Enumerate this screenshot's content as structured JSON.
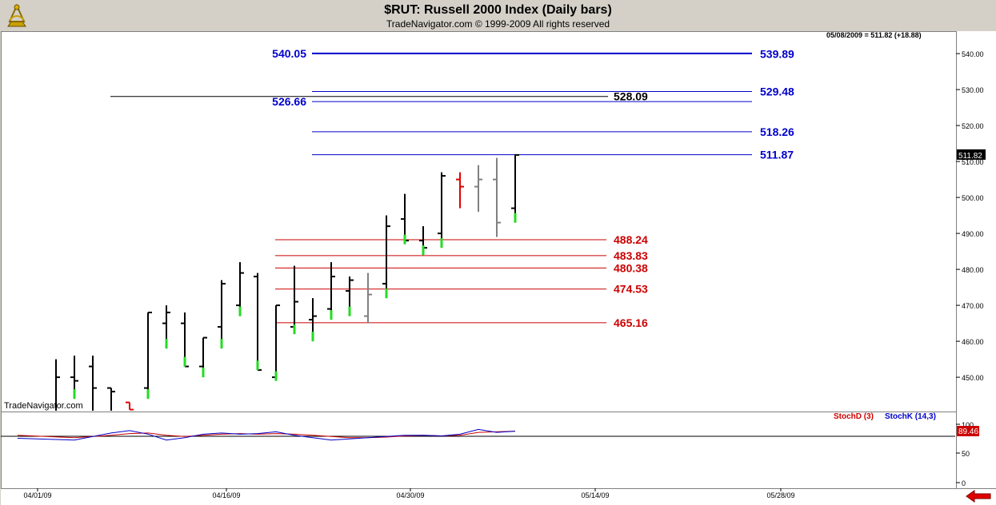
{
  "header": {
    "title": "$RUT:  Russell 2000 Index  (Daily bars)",
    "subtitle": "TradeNavigator.com © 1999-2009 All rights reserved",
    "readout": "05/08/2009 = 511.82 (+18.88)",
    "watermark": "TradeNavigator.com",
    "logo_icon": "sextant-logo-icon",
    "nav_icon": "red-left-arrow-icon"
  },
  "oscillator": {
    "legend_d": "StochD (3)",
    "legend_k": "StochK (14,3)",
    "current_label": "89.46",
    "yticks": [
      "100",
      "50",
      "0"
    ],
    "series_k_color": "#0000cc",
    "series_d_color": "#cc0000"
  },
  "chart_data": {
    "type": "ohlc",
    "ylim": [
      441,
      546
    ],
    "yticks": [
      450,
      460,
      470,
      480,
      490,
      500,
      510,
      520,
      530,
      540
    ],
    "ytick_labels": [
      "450.00",
      "460.00",
      "470.00",
      "480.00",
      "490.00",
      "500.00",
      "510.00",
      "520.00",
      "530.00",
      "540.00"
    ],
    "current_price_label": "511.82",
    "x_dates": [
      "04/01/09",
      "04/16/09",
      "04/30/09",
      "05/14/09",
      "05/28/09"
    ],
    "bars": [
      {
        "date": "04/01/09",
        "o": 440,
        "h": 455,
        "l": 435,
        "c": 450,
        "color": "black"
      },
      {
        "date": "04/02/09",
        "o": 450,
        "h": 456,
        "l": 444,
        "c": 449,
        "color": "black"
      },
      {
        "date": "04/03/09",
        "o": 453,
        "h": 456,
        "l": 440,
        "c": 447,
        "color": "black"
      },
      {
        "date": "04/06/09",
        "o": 447,
        "h": 447,
        "l": 440,
        "c": 446,
        "color": "black"
      },
      {
        "date": "04/07/09",
        "o": 443,
        "h": 443,
        "l": 441,
        "c": 441,
        "color": "red"
      },
      {
        "date": "04/08/09",
        "o": 447,
        "h": 468,
        "l": 444,
        "c": 468,
        "color": "black"
      },
      {
        "date": "04/09/09",
        "o": 465,
        "h": 470,
        "l": 458,
        "c": 468,
        "color": "black"
      },
      {
        "date": "04/13/09",
        "o": 465,
        "h": 468,
        "l": 453,
        "c": 453,
        "color": "black"
      },
      {
        "date": "04/14/09",
        "o": 453,
        "h": 461,
        "l": 450,
        "c": 461,
        "color": "black"
      },
      {
        "date": "04/15/09",
        "o": 464,
        "h": 477,
        "l": 458,
        "c": 476,
        "color": "black"
      },
      {
        "date": "04/16/09",
        "o": 470,
        "h": 482,
        "l": 467,
        "c": 479,
        "color": "black"
      },
      {
        "date": "04/17/09",
        "o": 478,
        "h": 479,
        "l": 452,
        "c": 452,
        "color": "black"
      },
      {
        "date": "04/20/09",
        "o": 450,
        "h": 470,
        "l": 449,
        "c": 470,
        "color": "black"
      },
      {
        "date": "04/21/09",
        "o": 464,
        "h": 481,
        "l": 462,
        "c": 471,
        "color": "black"
      },
      {
        "date": "04/22/09",
        "o": 466,
        "h": 472,
        "l": 460,
        "c": 467,
        "color": "black"
      },
      {
        "date": "04/23/09",
        "o": 469,
        "h": 482,
        "l": 466,
        "c": 478,
        "color": "black"
      },
      {
        "date": "04/24/09",
        "o": 474,
        "h": 478,
        "l": 467,
        "c": 477,
        "color": "black"
      },
      {
        "date": "04/27/09",
        "o": 467,
        "h": 479,
        "l": 465,
        "c": 473,
        "color": "gray"
      },
      {
        "date": "04/28/09",
        "o": 476,
        "h": 495,
        "l": 472,
        "c": 492,
        "color": "black"
      },
      {
        "date": "04/29/09",
        "o": 494,
        "h": 501,
        "l": 487,
        "c": 488,
        "color": "black"
      },
      {
        "date": "04/30/09",
        "o": 488,
        "h": 492,
        "l": 484,
        "c": 486,
        "color": "black"
      },
      {
        "date": "05/01/09",
        "o": 490,
        "h": 507,
        "l": 486,
        "c": 506,
        "color": "black"
      },
      {
        "date": "05/04/09",
        "o": 505,
        "h": 507,
        "l": 497,
        "c": 503,
        "color": "red"
      },
      {
        "date": "05/05/09",
        "o": 503,
        "h": 509,
        "l": 496,
        "c": 505,
        "color": "gray"
      },
      {
        "date": "05/06/09",
        "o": 505,
        "h": 511,
        "l": 489,
        "c": 493,
        "color": "gray"
      },
      {
        "date": "05/08/09",
        "o": 497,
        "h": 512,
        "l": 493,
        "c": 511.82,
        "color": "black"
      }
    ],
    "levels": [
      {
        "value": 540.05,
        "label": "540.05",
        "color": "#0000cc",
        "side": "left",
        "bold_line": true
      },
      {
        "value": 539.89,
        "label": "539.89",
        "color": "#0000cc",
        "side": "right",
        "bold_line": false
      },
      {
        "value": 529.48,
        "label": "529.48",
        "color": "#0000cc",
        "side": "right",
        "bold_line": false
      },
      {
        "value": 528.09,
        "label": "528.09",
        "color": "#000000",
        "side": "right-mid",
        "bold_line": false
      },
      {
        "value": 526.66,
        "label": "526.66",
        "color": "#0000cc",
        "side": "left",
        "bold_line": false
      },
      {
        "value": 518.26,
        "label": "518.26",
        "color": "#0000cc",
        "side": "right",
        "bold_line": false
      },
      {
        "value": 511.87,
        "label": "511.87",
        "color": "#0000cc",
        "side": "right",
        "bold_line": false
      },
      {
        "value": 488.24,
        "label": "488.24",
        "color": "#cc0000",
        "side": "right-red",
        "bold_line": false
      },
      {
        "value": 483.83,
        "label": "483.83",
        "color": "#cc0000",
        "side": "right-red",
        "bold_line": false
      },
      {
        "value": 480.38,
        "label": "480.38",
        "color": "#cc0000",
        "side": "right-red",
        "bold_line": false
      },
      {
        "value": 474.53,
        "label": "474.53",
        "color": "#cc0000",
        "side": "right-red",
        "bold_line": false
      },
      {
        "value": 465.16,
        "label": "465.16",
        "color": "#cc0000",
        "side": "right-red",
        "bold_line": false
      }
    ],
    "stoch_k": [
      75,
      72,
      78,
      84,
      88,
      82,
      72,
      76,
      82,
      84,
      82,
      83,
      86,
      80,
      76,
      72,
      74,
      76,
      78,
      80,
      80,
      79,
      82,
      90,
      85,
      87
    ],
    "stoch_d": [
      80,
      76,
      78,
      80,
      83,
      84,
      80,
      78,
      80,
      82,
      83,
      82,
      83,
      82,
      80,
      78,
      76,
      76,
      77,
      79,
      80,
      79,
      80,
      85,
      86,
      87
    ]
  }
}
